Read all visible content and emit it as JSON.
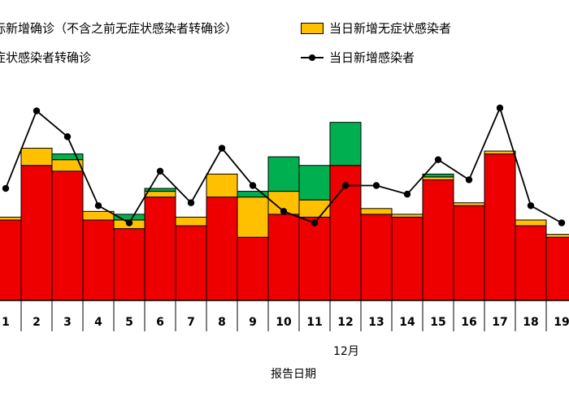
{
  "legend": {
    "red_label": "际新增确诊（不含之前无症状感染者转确诊）",
    "orange_label": "当日新增无症状感染者",
    "green_label": "症状感染者转确诊",
    "line_label": "当日新增感染者"
  },
  "axis": {
    "month_label": "12月",
    "x_title": "报告日期"
  },
  "colors": {
    "red": "#ee0000",
    "orange": "#ffc000",
    "green": "#00b050",
    "line": "#000000"
  },
  "chart_data": {
    "type": "bar",
    "stacked": true,
    "categories": [
      "1",
      "2",
      "3",
      "4",
      "5",
      "6",
      "7",
      "8",
      "9",
      "10",
      "11",
      "12",
      "13",
      "14",
      "15",
      "16",
      "17",
      "18",
      "19"
    ],
    "series": [
      {
        "name": "际新增确诊（不含之前无症状感染者转确诊）",
        "values": [
          28,
          47,
          45,
          28,
          25,
          36,
          26,
          36,
          22,
          30,
          29,
          47,
          30,
          29,
          42,
          33,
          51,
          26,
          22
        ]
      },
      {
        "name": "当日新增无症状感染者",
        "values": [
          1,
          6,
          4,
          3,
          3,
          2,
          3,
          8,
          14,
          8,
          6,
          0,
          2,
          1,
          1,
          1,
          1,
          2,
          1
        ]
      },
      {
        "name": "症状感染者转确诊",
        "values": [
          0,
          0,
          2,
          0,
          2,
          1,
          0,
          0,
          2,
          12,
          12,
          15,
          0,
          0,
          1,
          0,
          0,
          0,
          0
        ]
      }
    ],
    "line": {
      "name": "当日新增感染者",
      "values": [
        39,
        66,
        57,
        33,
        27,
        45,
        34,
        53,
        40,
        31,
        27,
        40,
        40,
        37,
        49,
        42,
        67,
        33,
        27
      ]
    },
    "ylim": [
      0,
      80
    ],
    "xlabel": "报告日期",
    "x_group_label": "12月",
    "grid": false,
    "legend_position": "top"
  }
}
